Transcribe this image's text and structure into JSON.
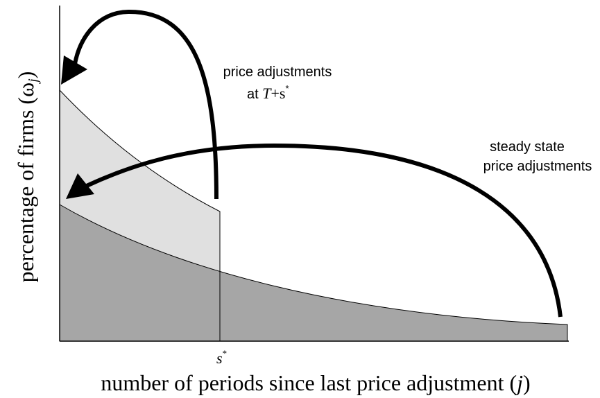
{
  "y_axis_label": {
    "text": "percentage of firms (ω",
    "sub": "j",
    "close": ")"
  },
  "x_axis_label": {
    "text": "number of periods since last price adjustment (",
    "var": "j",
    "close": ")"
  },
  "x_marker": {
    "base": "s",
    "sup": "*"
  },
  "annotations": [
    {
      "line1": "price adjustments",
      "line2": {
        "prefix": "at ",
        "var": "T",
        "mid": "+s",
        "sup": "*"
      }
    },
    {
      "line1": "steady state",
      "line2": "price adjustments"
    }
  ]
}
